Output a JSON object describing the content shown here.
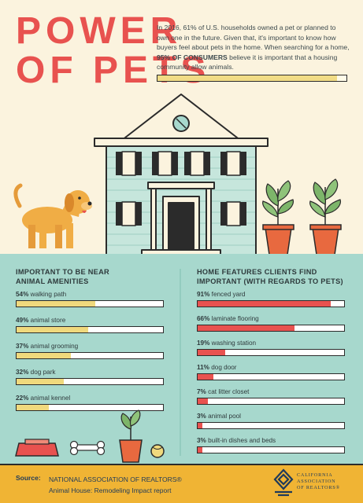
{
  "header": {
    "title_line1": "POWER",
    "title_line2": "OF PETS",
    "intro_part1": "In 2016, 61% of U.S. households owned a pet or planned to own one in the future. Given that, it's important to know how buyers feel about pets in the home. When searching for a home, ",
    "intro_bold": "95% OF CONSUMERS",
    "intro_part2": " believe it is important that a housing community allow animals.",
    "intro_value": 0.95
  },
  "left_column": {
    "title_line1": "IMPORTANT TO BE NEAR",
    "title_line2": "ANIMAL AMENITIES",
    "items": [
      {
        "pct": "54%",
        "label": " walking path",
        "value": 54
      },
      {
        "pct": "49%",
        "label": " animal store",
        "value": 49
      },
      {
        "pct": "37%",
        "label": " animal grooming",
        "value": 37
      },
      {
        "pct": "32%",
        "label": " dog park",
        "value": 32
      },
      {
        "pct": "22%",
        "label": " animal kennel",
        "value": 22
      }
    ]
  },
  "right_column": {
    "title_line1": "HOME FEATURES CLIENTS FIND",
    "title_line2": "IMPORTANT (WITH REGARDS TO PETS)",
    "items": [
      {
        "pct": "91%",
        "label": " fenced yard",
        "value": 91
      },
      {
        "pct": "66%",
        "label": " laminate flooring",
        "value": 66
      },
      {
        "pct": "19%",
        "label": " washing station",
        "value": 19
      },
      {
        "pct": "11%",
        "label": " dog door",
        "value": 11
      },
      {
        "pct": "7%",
        "label": " cat litter closet",
        "value": 7
      },
      {
        "pct": "3%",
        "label": " animal pool",
        "value": 3
      },
      {
        "pct": "3%",
        "label": " built-in dishes and beds",
        "value": 3
      }
    ]
  },
  "source": {
    "label": "Source:",
    "line1": "NATIONAL ASSOCIATION OF REALTORS®",
    "line2": "Animal House: Remodeling Impact report"
  },
  "logo": {
    "line1": "CALIFORNIA",
    "line2": "ASSOCIATION",
    "line3": "OF REALTORS®"
  },
  "colors": {
    "accent_red": "#e8524f",
    "accent_yellow": "#f0d97d",
    "background": "#fbf3de",
    "teal": "#a7d8cd",
    "band": "#f0b434"
  }
}
